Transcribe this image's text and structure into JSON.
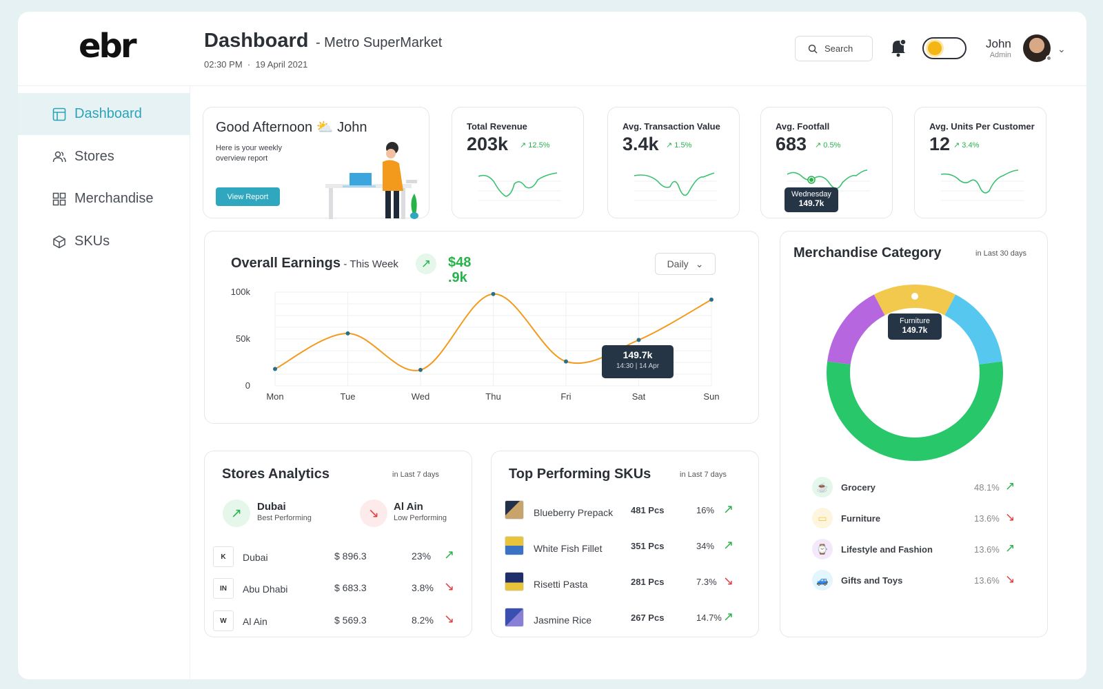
{
  "header": {
    "logo": "ebr",
    "title": "Dashboard",
    "subtitle": "- Metro SuperMarket",
    "time": "02:30 PM",
    "date": "19 April 2021",
    "search_placeholder": "Search",
    "user_name": "John",
    "user_role": "Admin"
  },
  "sidebar": {
    "items": [
      {
        "label": "Dashboard",
        "icon": "layout-icon",
        "active": true
      },
      {
        "label": "Stores",
        "icon": "users-icon",
        "active": false
      },
      {
        "label": "Merchandise",
        "icon": "grid-icon",
        "active": false
      },
      {
        "label": "SKUs",
        "icon": "cube-icon",
        "active": false
      }
    ]
  },
  "welcome": {
    "greeting": "Good Afternoon",
    "name": "John",
    "text_line1": "Here is your weekly",
    "text_line2": "overview report",
    "button": "View Report"
  },
  "kpis": [
    {
      "label": "Total Revenue",
      "value": "203k",
      "delta": "12.5%"
    },
    {
      "label": "Avg. Transaction Value",
      "value": "3.4k",
      "delta": "1.5%"
    },
    {
      "label": "Avg. Footfall",
      "value": "683",
      "delta": "0.5%",
      "tooltip_label": "Wednesday",
      "tooltip_value": "149.7k"
    },
    {
      "label": "Avg. Units Per Customer",
      "value": "12",
      "delta": "3.4%"
    }
  ],
  "earnings": {
    "title": "Overall Earnings",
    "period": "- This Week",
    "amount_line1": "$48",
    "amount_line2": ".9k",
    "dropdown": "Daily",
    "tooltip_value": "149.7k",
    "tooltip_time": "14:30",
    "tooltip_date": "14 Apr"
  },
  "chart_data": {
    "type": "line",
    "categories": [
      "Mon",
      "Tue",
      "Wed",
      "Thu",
      "Fri",
      "Sat",
      "Sun"
    ],
    "y_ticks": [
      "100k",
      "50k",
      "0"
    ],
    "ylim": [
      0,
      100
    ],
    "series": [
      {
        "values": [
          18,
          56,
          17,
          98,
          26,
          49,
          92
        ]
      }
    ],
    "color": "#f39a1c"
  },
  "stores": {
    "title": "Stores Analytics",
    "hint": "in Last 7 days",
    "best_name": "Dubai",
    "best_label": "Best Performing",
    "low_name": "Al Ain",
    "low_label": "Low Performing",
    "rows": [
      {
        "code": "K",
        "name": "Dubai",
        "amount": "$ 896.3",
        "pct": "23%",
        "trend": "up"
      },
      {
        "code": "IN",
        "name": "Abu Dhabi",
        "amount": "$ 683.3",
        "pct": "3.8%",
        "trend": "down"
      },
      {
        "code": "W",
        "name": "Al Ain",
        "amount": "$ 569.3",
        "pct": "8.2%",
        "trend": "down"
      }
    ]
  },
  "skus": {
    "title": "Top Performing SKUs",
    "hint": "in Last 7 days",
    "rows": [
      {
        "name": "Blueberry Prepack",
        "qty": "481 Pcs",
        "pct": "16%",
        "trend": "up"
      },
      {
        "name": "White Fish Fillet",
        "qty": "351 Pcs",
        "pct": "34%",
        "trend": "up"
      },
      {
        "name": "Risetti Pasta",
        "qty": "281 Pcs",
        "pct": "7.3%",
        "trend": "down"
      },
      {
        "name": "Jasmine Rice",
        "qty": "267 Pcs",
        "pct": "14.7%",
        "trend": "up"
      }
    ]
  },
  "merch": {
    "title": "Merchandise Category",
    "hint": "in Last 30 days",
    "tooltip_label": "Furniture",
    "tooltip_value": "149.7k",
    "segments": [
      {
        "name": "Grocery",
        "pct": "48.1%",
        "trend": "up",
        "color": "#27c76a",
        "icon": "cup-icon"
      },
      {
        "name": "Furniture",
        "pct": "13.6%",
        "trend": "down",
        "color": "#f2c94c",
        "icon": "sofa-icon"
      },
      {
        "name": "Lifestyle and Fashion",
        "pct": "13.6%",
        "trend": "up",
        "color": "#b667e0",
        "icon": "watch-icon"
      },
      {
        "name": "Gifts and Toys",
        "pct": "13.6%",
        "trend": "down",
        "color": "#56c8f0",
        "icon": "car-icon"
      }
    ]
  }
}
